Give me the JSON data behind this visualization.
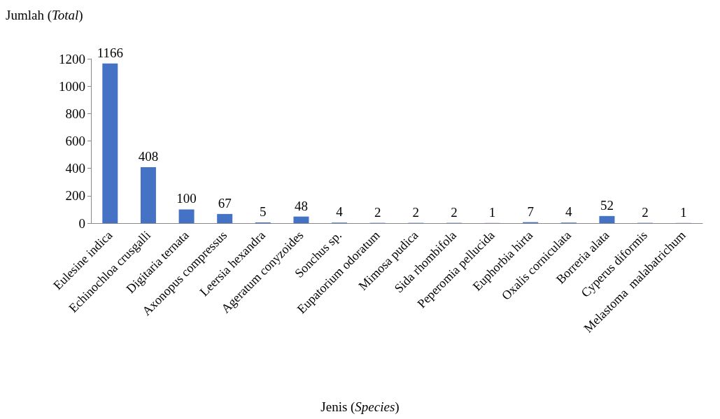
{
  "chart_data": {
    "type": "bar",
    "ylabel": "Jumlah (Total)",
    "xlabel": "Jenis (Species)",
    "categories": [
      "Eulesine indica",
      "Echinochloa crusgalli",
      "Digitaria ternata",
      "Axonopus compressus",
      "Leersia hexandra",
      "Ageratum conyzoides",
      "Sonchus sp.",
      "Eupatorium odoratum",
      "Mimosa pudica",
      "Sida rhombifola",
      "Peperomia pellucida",
      "Euphorbia hirta",
      "Oxalis corniculata",
      "Borreria alata",
      "Cyperus diformis",
      "Melastoma  malabatrichum"
    ],
    "values": [
      1166,
      408,
      100,
      67,
      5,
      48,
      4,
      2,
      2,
      2,
      1,
      7,
      4,
      52,
      2,
      1
    ],
    "color": "#4472c4",
    "ylim": [
      0,
      1200
    ],
    "yticks": [
      0,
      200,
      400,
      600,
      800,
      1000,
      1200
    ],
    "data_labels": true,
    "grid": false
  }
}
